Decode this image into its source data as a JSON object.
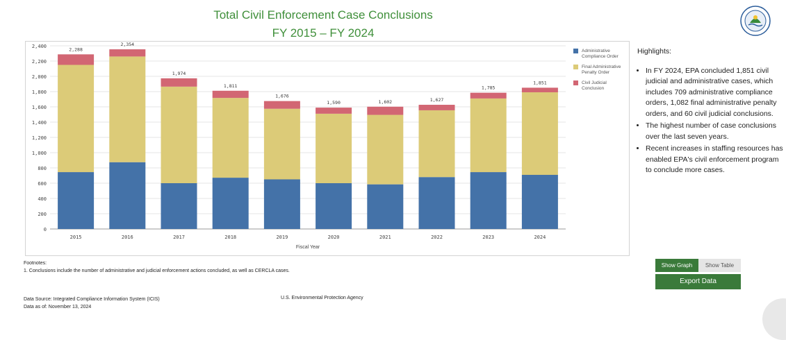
{
  "title_line1": "Total Civil Enforcement Case Conclusions",
  "title_line2": "FY 2015 – FY 2024",
  "seal_alt": "EPA seal",
  "chart_data": {
    "type": "bar",
    "stacked": true,
    "categories": [
      "2015",
      "2016",
      "2017",
      "2018",
      "2019",
      "2020",
      "2021",
      "2022",
      "2023",
      "2024"
    ],
    "series": [
      {
        "name": "Administrative Compliance Order",
        "color": "#4472a8",
        "values": [
          745,
          875,
          600,
          672,
          650,
          600,
          585,
          680,
          745,
          709
        ]
      },
      {
        "name": "Final Administrative Penalty Order",
        "color": "#dccb78",
        "values": [
          1405,
          1385,
          1265,
          1045,
          925,
          910,
          910,
          875,
          965,
          1082
        ]
      },
      {
        "name": "Civil Judicial Conclusion",
        "color": "#d26673",
        "values": [
          138,
          94,
          109,
          94,
          101,
          80,
          107,
          72,
          75,
          60
        ]
      }
    ],
    "totals": [
      "2,288",
      "2,354",
      "1,974",
      "1,811",
      "1,676",
      "1,590",
      "1,602",
      "1,627",
      "1,785",
      "1,851"
    ],
    "xlabel": "Fiscal Year",
    "ylabel": "",
    "ylim": [
      0,
      2400
    ],
    "yticks": [
      "0",
      "200",
      "400",
      "600",
      "800",
      "1,000",
      "1,200",
      "1,400",
      "1,600",
      "1,800",
      "2,000",
      "2,200",
      "2,400"
    ],
    "legend": [
      "Administrative\nCompliance Order",
      "Final Administrative\nPenalty Order",
      "Civil Judicial\nConclusion"
    ],
    "legend_position": "top-right",
    "grid": true
  },
  "highlights": {
    "heading": "Highlights:",
    "items": [
      "In FY 2024, EPA concluded 1,851 civil judicial and administrative cases, which includes 709 administrative compliance orders, 1,082 final administrative penalty orders, and 60 civil judicial conclusions.",
      "The highest number of case conclusions over the last seven years.",
      "Recent increases in staffing resources has enabled EPA's civil enforcement program to conclude more cases."
    ]
  },
  "footnotes": {
    "heading": "Footnotes:",
    "note1": "1. Conclusions include the number of administrative and judicial enforcement actions concluded, as well as CERCLA cases."
  },
  "source": {
    "line1": "Data Source: Integrated Compliance Information System (ICIS)",
    "line2": "Data as of: November 13, 2024",
    "agency": "U.S. Environmental Protection Agency"
  },
  "buttons": {
    "show_graph": "Show Graph",
    "show_table": "Show Table",
    "export": "Export Data"
  },
  "colors": {
    "title": "#3f8f3a",
    "button_green": "#3a7a3a"
  }
}
